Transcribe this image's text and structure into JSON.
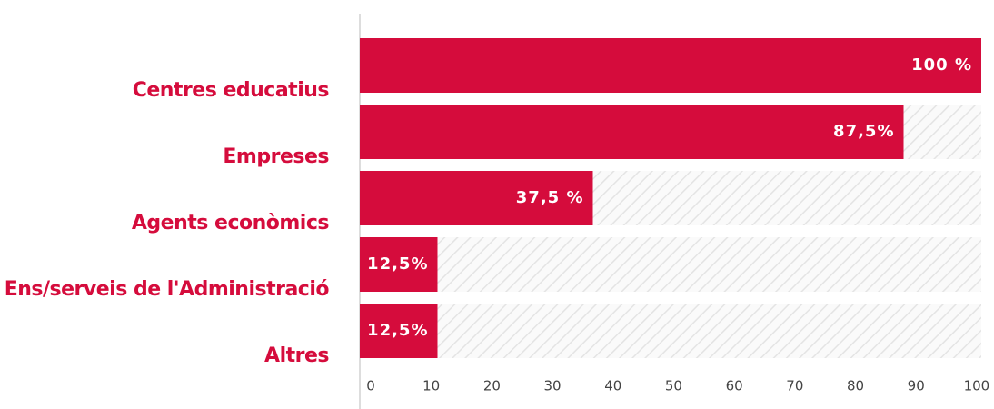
{
  "chart_data": {
    "type": "bar",
    "orientation": "horizontal",
    "categories": [
      "Centres educatius",
      "Empreses",
      "Agents econòmics",
      "Ens/serveis de l'Administració",
      "Altres"
    ],
    "values": [
      100,
      87.5,
      37.5,
      12.5,
      12.5
    ],
    "value_labels": [
      "100 %",
      "87,5%",
      "37,5 %",
      "12,5%",
      "12,5%"
    ],
    "color": "#d50c3c",
    "xlim": [
      0,
      100
    ],
    "xticks": [
      0,
      10,
      20,
      30,
      40,
      50,
      60,
      70,
      80,
      90,
      100
    ],
    "grid": false
  }
}
